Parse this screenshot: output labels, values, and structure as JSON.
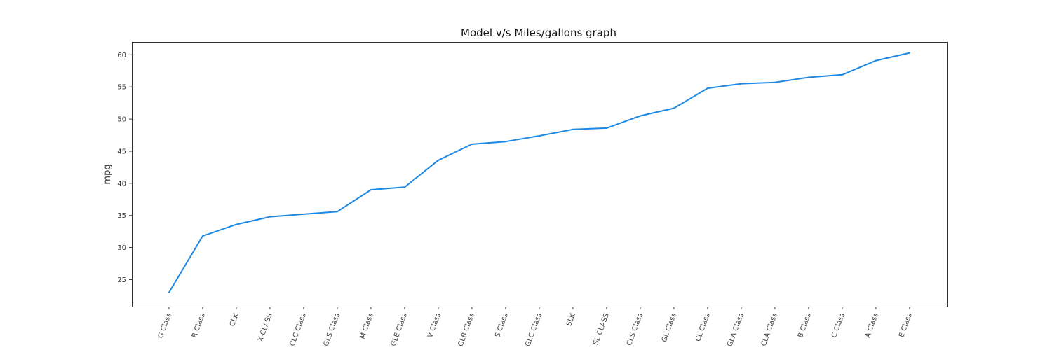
{
  "chart_data": {
    "type": "line",
    "title": "Model v/s Miles/gallons graph",
    "xlabel": "",
    "ylabel": "mpg",
    "categories": [
      "G Class",
      "R Class",
      "CLK",
      "X-CLASS",
      "CLC Class",
      "GLS Class",
      "M Class",
      "GLE Class",
      "V Class",
      "GLB Class",
      "S Class",
      "GLC Class",
      "SLK",
      "SL CLASS",
      "CLS Class",
      "GL Class",
      "CL Class",
      "GLA Class",
      "CLA Class",
      "B Class",
      "C Class",
      "A Class",
      "E Class"
    ],
    "series": [
      {
        "values": [
          23.0,
          31.8,
          33.6,
          34.8,
          35.2,
          35.6,
          39.0,
          39.4,
          43.6,
          46.1,
          46.5,
          47.4,
          48.4,
          48.6,
          50.5,
          51.7,
          54.8,
          55.5,
          55.7,
          56.5,
          56.9,
          59.1,
          60.3
        ]
      }
    ],
    "ylim": [
      20.8,
      62.0
    ],
    "yticks": [
      25,
      30,
      35,
      40,
      45,
      50,
      55,
      60
    ],
    "grid": false,
    "colors": {
      "line": "#1e88e5",
      "axis": "#333333"
    }
  }
}
